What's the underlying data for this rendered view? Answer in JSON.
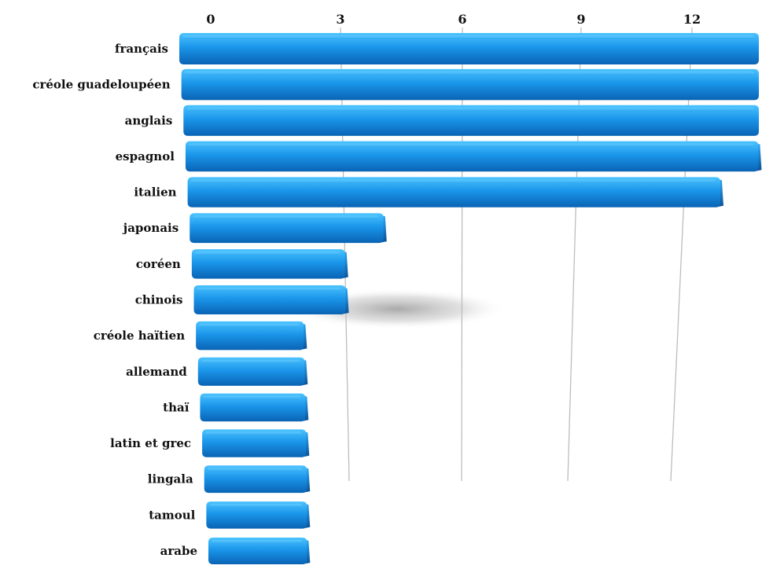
{
  "chart_data": {
    "type": "bar",
    "orientation": "horizontal",
    "categories": [
      "français",
      "créole guadeloupéen",
      "anglais",
      "espagnol",
      "italien",
      "japonais",
      "coréen",
      "chinois",
      "créole haïtien",
      "allemand",
      "thaï",
      "latin et grec",
      "lingala",
      "tamoul",
      "arabe"
    ],
    "values": [
      15,
      14,
      15,
      14,
      13,
      4,
      3,
      3,
      2,
      2,
      2,
      2,
      2,
      2,
      2
    ],
    "xticks": [
      "0",
      "3",
      "6",
      "9",
      "12"
    ],
    "xlim": [
      0,
      15
    ],
    "grid": true,
    "legend": "none",
    "colors": {
      "bar_top": "#4cc3ff",
      "bar_mid": "#1a96ea",
      "bar_bottom": "#0a63b4",
      "bar_end": "#0b4f94",
      "grid": "#bdbdbd",
      "text": "#111111"
    }
  }
}
